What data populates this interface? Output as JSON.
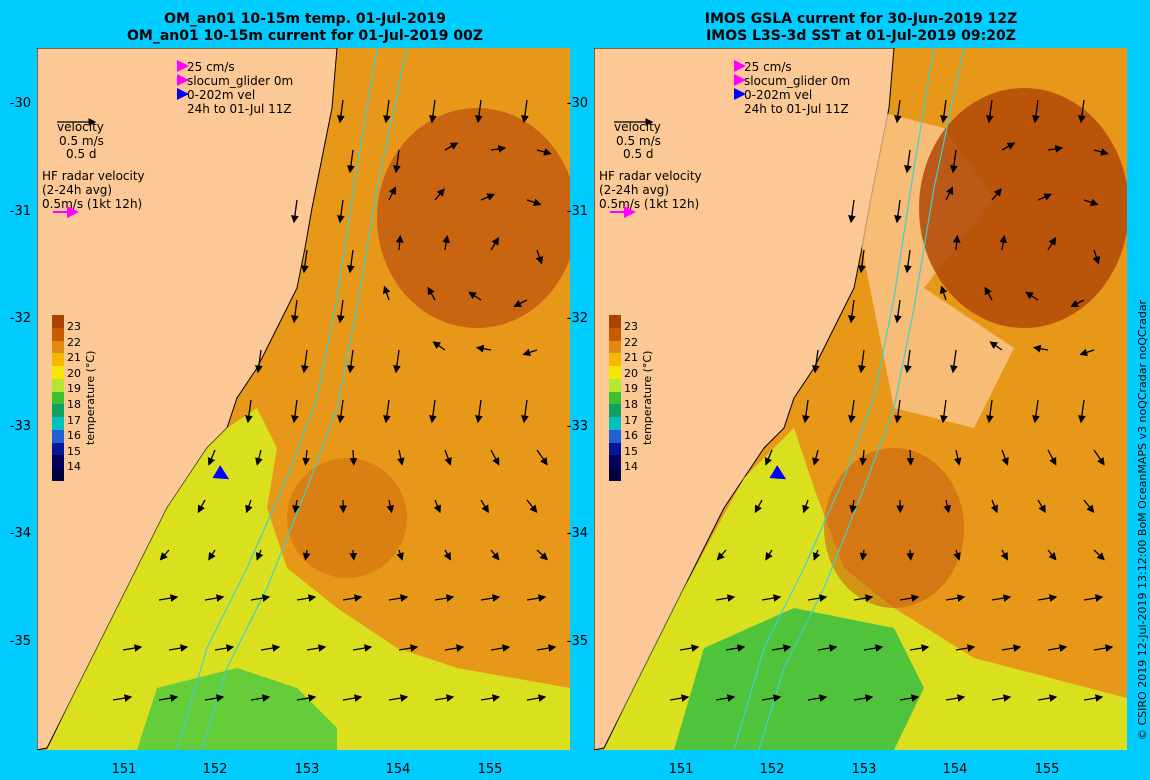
{
  "left_panel": {
    "title_line1": "OM_an01 10-15m temp. 01-Jul-2019",
    "title_line2": "OM_an01 10-15m current for 01-Jul-2019 00Z"
  },
  "right_panel": {
    "title_line1": "IMOS GSLA current for 30-Jun-2019 12Z",
    "title_line2": "IMOS L3S-3d SST at 01-Jul-2019 09:20Z"
  },
  "legend": {
    "scale": "25 cm/s",
    "glider": "slocum_glider 0m",
    "vel": "0-202m vel",
    "period": "24h to 01-Jul 11Z",
    "velocity_title": "velocity",
    "velocity_scale": "0.5 m/s",
    "velocity_days": "0.5 d",
    "hf_title": "HF radar velocity",
    "hf_avg": "(2-24h avg)",
    "hf_scale": "0.5m/s (1kt 12h)",
    "colors": {
      "glider": "#ff00ff",
      "vel": "#0000ff",
      "hf": "#ff00ff"
    }
  },
  "colorbar": {
    "title": "temperature (°C)",
    "labels": [
      "23",
      "22",
      "21",
      "20",
      "19",
      "18",
      "17",
      "16",
      "15",
      "14"
    ],
    "colors": [
      "#a84400",
      "#c85a00",
      "#e08a10",
      "#f4b800",
      "#f4e800",
      "#b4e830",
      "#40c030",
      "#10a060",
      "#00c0c0",
      "#2060d0",
      "#001898",
      "#000060",
      "#000040"
    ]
  },
  "axes": {
    "lat_labels": [
      "-30",
      "-31",
      "-32",
      "-33",
      "-34",
      "-35"
    ],
    "lon_labels": [
      "151",
      "152",
      "153",
      "154",
      "155"
    ]
  },
  "copyright": "© CSIRO 2019   12-Jul-2019 13:12:00 BoM OceanMAPS v3 noQCradar noQCradar"
}
